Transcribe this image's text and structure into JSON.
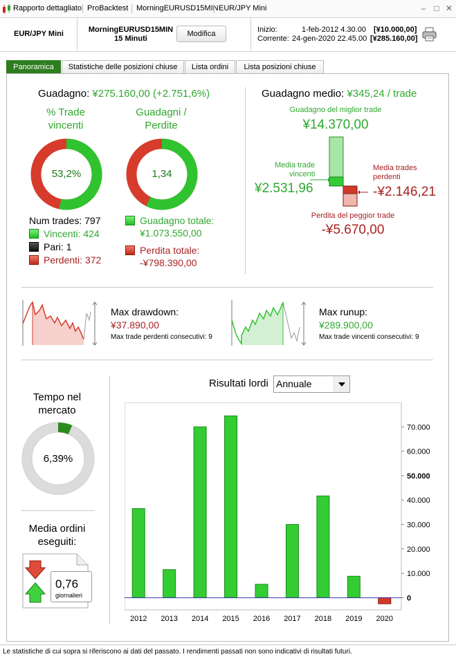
{
  "titlebar": {
    "items": [
      "Rapporto dettagliato",
      "ProBacktest",
      "MorningEURUSD15MIN",
      "EUR/JPY Mini"
    ],
    "minimize": "–",
    "maximize": "□",
    "close": "✕"
  },
  "header": {
    "instrument": "EUR/JPY Mini",
    "strategy": "MorningEURUSD15MIN",
    "timeframe": "15 Minuti",
    "modify_label": "Modifica",
    "start_label": "Inizio:",
    "start_date": "1-feb-2012 4.30.00",
    "start_capital": "[¥10.000,00]",
    "current_label": "Corrente:",
    "current_date": "24-gen-2020 22.45.00",
    "current_capital": "[¥285.160,00]"
  },
  "tabs": [
    "Panoramica",
    "Statistiche delle posizioni chiuse",
    "Lista ordini",
    "Lista posizioni chiuse"
  ],
  "gain": {
    "label": "Guadagno:",
    "value": "¥275.160,00 (+2.751,6%)",
    "winrate_title_1": "% Trade",
    "winrate_title_2": "vincenti",
    "winrate_value": "53,2%",
    "winrate_fraction": 0.532,
    "ratio_title_1": "Guadagni /",
    "ratio_title_2": "Perdite",
    "ratio_value": "1,34",
    "ratio_fraction": 0.573
  },
  "trades": {
    "num_label": "Num trades:",
    "num_value": "797",
    "win_label": "Vincenti:",
    "win_value": "424",
    "even_label": "Pari:",
    "even_value": "1",
    "loss_label": "Perdenti:",
    "loss_value": "372",
    "total_gain_label": "Guadagno totale:",
    "total_gain_value": "¥1.073.550,00",
    "total_loss_label": "Perdita totale:",
    "total_loss_value": "-¥798.390,00"
  },
  "avg": {
    "label": "Guadagno medio:",
    "value": "¥345,24 / trade",
    "best_label": "Guadagno del miglior trade",
    "best_value": "¥14.370,00",
    "avg_win_label_1": "Media trade",
    "avg_win_label_2": "vincenti",
    "avg_win_value": "¥2.531,96",
    "avg_loss_label_1": "Media trades",
    "avg_loss_label_2": "perdenti",
    "avg_loss_value": "-¥2.146,21",
    "worst_label": "Perdita del peggior trade",
    "worst_value": "-¥5.670,00"
  },
  "drawdown": {
    "label": "Max drawdown:",
    "value": "¥37.890,00",
    "consec_label": "Max trade perdenti consecutivi:",
    "consec_value": "9"
  },
  "runup": {
    "label": "Max runup:",
    "value": "¥289.900,00",
    "consec_label": "Max trade vincenti consecutivi:",
    "consec_value": "9"
  },
  "market": {
    "title_1": "Tempo nel",
    "title_2": "mercato",
    "value": "6,39%",
    "fraction": 0.0639
  },
  "orders": {
    "title_1": "Media ordini",
    "title_2": "eseguiti:",
    "value": "0,76",
    "unit": "giornalieri"
  },
  "chart_title": "Risultati lordi",
  "period_select": "Annuale",
  "colors": {
    "green": "#2fa82f",
    "red": "#a82222",
    "tab_active": "#2e7d1f",
    "bar_green": "#33cc33",
    "bar_red": "#d03a2a"
  },
  "chart_data": {
    "type": "bar",
    "title": "Risultati lordi",
    "categories": [
      "2012",
      "2013",
      "2014",
      "2015",
      "2016",
      "2017",
      "2018",
      "2019",
      "2020"
    ],
    "values": [
      36500,
      11500,
      70000,
      74500,
      5500,
      30000,
      41700,
      8800,
      -2500
    ],
    "ylim": [
      -5000,
      80000
    ],
    "yticks": [
      "70.000",
      "60.000",
      "50.000",
      "40.000",
      "30.000",
      "20.000",
      "10.000",
      "0"
    ],
    "ytick_values": [
      70000,
      60000,
      50000,
      40000,
      30000,
      20000,
      10000,
      0
    ],
    "grid": false
  }
}
